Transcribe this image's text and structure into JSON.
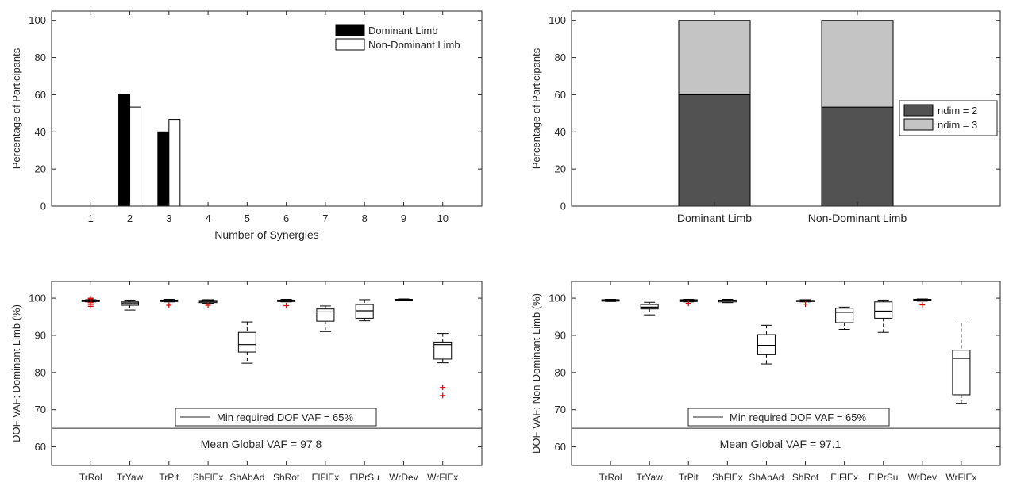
{
  "chart_data": [
    {
      "type": "bar",
      "ylabel": "Percentage of Participants",
      "xlabel": "Number of Synergies",
      "categories": [
        "1",
        "2",
        "3",
        "4",
        "5",
        "6",
        "7",
        "8",
        "9",
        "10"
      ],
      "yticks": [
        0,
        20,
        40,
        60,
        80,
        100
      ],
      "ylim": [
        0,
        105
      ],
      "legend_position": "top-right",
      "grid": false,
      "series": [
        {
          "name": "Dominant Limb",
          "color": "#000000",
          "values": [
            0,
            60,
            40,
            0,
            0,
            0,
            0,
            0,
            0,
            0
          ]
        },
        {
          "name": "Non-Dominant Limb",
          "color": "#ffffff",
          "values": [
            0,
            53.3,
            46.7,
            0,
            0,
            0,
            0,
            0,
            0,
            0
          ]
        }
      ]
    },
    {
      "type": "stacked-bar",
      "ylabel": "Percentage of Participants",
      "categories": [
        "Dominant Limb",
        "Non-Dominant Limb"
      ],
      "yticks": [
        0,
        20,
        40,
        60,
        80,
        100
      ],
      "ylim": [
        0,
        105
      ],
      "legend_position": "right",
      "grid": false,
      "series": [
        {
          "name": "ndim = 2",
          "color": "#525252",
          "values": [
            60,
            53.3
          ]
        },
        {
          "name": "ndim = 3",
          "color": "#c4c4c4",
          "values": [
            40,
            46.7
          ]
        }
      ]
    },
    {
      "type": "boxplot",
      "ylabel": "DOF VAF: Dominant Limb (%)",
      "categories": [
        "TrRol",
        "TrYaw",
        "TrPit",
        "ShFlEx",
        "ShAbAd",
        "ShRot",
        "ElFlEx",
        "ElPrSu",
        "WrDev",
        "WrFlEx"
      ],
      "yticks": [
        60,
        70,
        80,
        90,
        100
      ],
      "ylim": [
        55,
        104.5
      ],
      "reference_line": {
        "label": "Min required DOF VAF = 65%",
        "value": 65
      },
      "annotation": "Mean Global VAF = 97.8",
      "boxes": [
        {
          "min": 99.0,
          "q1": 99.1,
          "median": 99.3,
          "q3": 99.5,
          "max": 99.6,
          "outliers": [
            97.8,
            98.3,
            98.8,
            99.8,
            100.0
          ]
        },
        {
          "min": 96.8,
          "q1": 98.1,
          "median": 98.7,
          "q3": 99.0,
          "max": 99.5,
          "outliers": []
        },
        {
          "min": 99.0,
          "q1": 99.1,
          "median": 99.3,
          "q3": 99.5,
          "max": 99.7,
          "outliers": [
            98.1
          ]
        },
        {
          "min": 98.6,
          "q1": 98.8,
          "median": 99.1,
          "q3": 99.4,
          "max": 99.6,
          "outliers": [
            98.1
          ]
        },
        {
          "min": 82.5,
          "q1": 85.5,
          "median": 87.5,
          "q3": 90.8,
          "max": 93.6,
          "outliers": []
        },
        {
          "min": 99.0,
          "q1": 99.1,
          "median": 99.3,
          "q3": 99.5,
          "max": 99.7,
          "outliers": [
            98.0
          ]
        },
        {
          "min": 91.0,
          "q1": 93.8,
          "median": 96.3,
          "q3": 97.1,
          "max": 97.9,
          "outliers": []
        },
        {
          "min": 93.9,
          "q1": 94.6,
          "median": 96.6,
          "q3": 98.3,
          "max": 99.6,
          "outliers": []
        },
        {
          "min": 99.3,
          "q1": 99.4,
          "median": 99.6,
          "q3": 99.7,
          "max": 99.8,
          "outliers": []
        },
        {
          "min": 82.6,
          "q1": 83.6,
          "median": 87.5,
          "q3": 88.2,
          "max": 90.5,
          "outliers": [
            73.8,
            76.0
          ]
        }
      ]
    },
    {
      "type": "boxplot",
      "ylabel": "DOF VAF: Non-Dominant Limb (%)",
      "categories": [
        "TrRol",
        "TrYaw",
        "TrPit",
        "ShFlEx",
        "ShAbAd",
        "ShRot",
        "ElFlEx",
        "ElPrSu",
        "WrDev",
        "WrFlEx"
      ],
      "yticks": [
        60,
        70,
        80,
        90,
        100
      ],
      "ylim": [
        55,
        104.5
      ],
      "reference_line": {
        "label": "Min required DOF VAF = 65%",
        "value": 65
      },
      "annotation": "Mean Global VAF = 97.1",
      "boxes": [
        {
          "min": 99.1,
          "q1": 99.2,
          "median": 99.4,
          "q3": 99.6,
          "max": 99.7,
          "outliers": []
        },
        {
          "min": 95.5,
          "q1": 97.1,
          "median": 97.6,
          "q3": 98.3,
          "max": 98.9,
          "outliers": []
        },
        {
          "min": 99.0,
          "q1": 99.1,
          "median": 99.4,
          "q3": 99.6,
          "max": 99.7,
          "outliers": [
            98.6
          ]
        },
        {
          "min": 98.8,
          "q1": 99.0,
          "median": 99.3,
          "q3": 99.5,
          "max": 99.7,
          "outliers": []
        },
        {
          "min": 82.3,
          "q1": 84.8,
          "median": 87.3,
          "q3": 90.2,
          "max": 92.7,
          "outliers": []
        },
        {
          "min": 99.0,
          "q1": 99.1,
          "median": 99.2,
          "q3": 99.4,
          "max": 99.6,
          "outliers": [
            98.4
          ]
        },
        {
          "min": 91.6,
          "q1": 93.4,
          "median": 96.2,
          "q3": 97.3,
          "max": 97.6,
          "outliers": []
        },
        {
          "min": 90.8,
          "q1": 94.6,
          "median": 96.5,
          "q3": 99.0,
          "max": 99.5,
          "outliers": []
        },
        {
          "min": 99.2,
          "q1": 99.4,
          "median": 99.6,
          "q3": 99.7,
          "max": 99.8,
          "outliers": [
            98.2
          ]
        },
        {
          "min": 71.7,
          "q1": 74.0,
          "median": 83.8,
          "q3": 86.0,
          "max": 93.3,
          "outliers": []
        }
      ]
    }
  ]
}
